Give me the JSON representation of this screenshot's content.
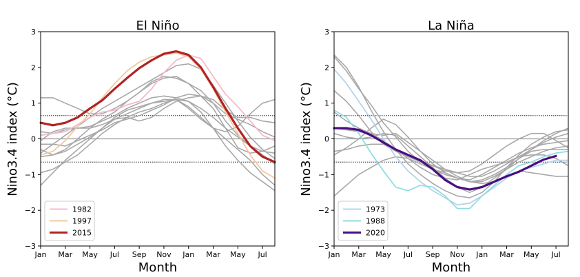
{
  "chart_data": [
    {
      "type": "line",
      "title": "El Niño",
      "xlabel": "Month",
      "ylabel": "Nino3.4 index (°C)",
      "xlim": [
        0,
        19
      ],
      "ylim": [
        -3,
        3
      ],
      "x_tick_labels": [
        "Jan",
        "Mar",
        "May",
        "Jul",
        "Sep",
        "Nov",
        "Jan",
        "Mar",
        "May",
        "Jul"
      ],
      "x_tick_positions": [
        0,
        2,
        4,
        6,
        8,
        10,
        12,
        14,
        16,
        18
      ],
      "y_tick_labels": [
        "−3",
        "−2",
        "−1",
        "0",
        "1",
        "2",
        "3"
      ],
      "y_tick_values": [
        -3,
        -2,
        -1,
        0,
        1,
        2,
        3
      ],
      "thresholds": [
        0.65,
        -0.65
      ],
      "zero_line": 0,
      "legend_position": "lower-left",
      "background_series_color": "#a8a8a8",
      "series": [
        {
          "name": "1982",
          "color": "#f6b9cc",
          "highlight": false,
          "values": [
            0.1,
            0.15,
            0.2,
            0.4,
            0.6,
            0.75,
            0.8,
            0.95,
            1.05,
            1.4,
            1.85,
            2.2,
            2.35,
            2.25,
            1.75,
            1.25,
            0.9,
            0.5,
            0.1,
            -0.05
          ]
        },
        {
          "name": "1997",
          "color": "#f2c9a0",
          "highlight": false,
          "values": [
            -0.45,
            -0.35,
            -0.05,
            0.35,
            0.7,
            1.15,
            1.55,
            1.9,
            2.15,
            2.3,
            2.35,
            2.4,
            2.3,
            1.95,
            1.4,
            0.75,
            0.15,
            -0.45,
            -0.9,
            -1.1
          ]
        },
        {
          "name": "2015",
          "color": "#b22222",
          "highlight": true,
          "values": [
            0.45,
            0.38,
            0.45,
            0.6,
            0.85,
            1.08,
            1.4,
            1.7,
            1.98,
            2.2,
            2.38,
            2.45,
            2.35,
            2.0,
            1.45,
            0.85,
            0.3,
            -0.2,
            -0.5,
            -0.65
          ]
        },
        {
          "values": [
            1.15,
            1.15,
            1.0,
            0.85,
            0.7,
            0.7,
            0.85,
            1.05,
            1.3,
            1.6,
            1.75,
            1.7,
            1.55,
            1.35,
            1.0,
            0.5,
            0.1,
            -0.2,
            -0.35,
            -0.4
          ]
        },
        {
          "values": [
            -0.4,
            -0.15,
            0.1,
            0.35,
            0.6,
            0.85,
            1.05,
            1.25,
            1.45,
            1.65,
            1.85,
            2.05,
            2.1,
            1.95,
            1.5,
            1.0,
            0.5,
            0.05,
            -0.3,
            -0.55
          ]
        },
        {
          "values": [
            -0.3,
            -0.45,
            -0.3,
            0.0,
            0.3,
            0.55,
            0.75,
            1.05,
            1.3,
            1.55,
            1.7,
            1.75,
            1.55,
            1.2,
            0.85,
            0.3,
            -0.25,
            -0.4,
            -0.35,
            -0.2
          ]
        },
        {
          "values": [
            -0.05,
            0.2,
            0.3,
            0.3,
            0.35,
            0.5,
            0.65,
            0.85,
            1.0,
            1.15,
            1.2,
            1.15,
            1.05,
            0.85,
            0.6,
            0.3,
            0.05,
            -0.2,
            -0.45,
            -0.7
          ]
        },
        {
          "values": [
            -1.3,
            -0.95,
            -0.6,
            -0.3,
            0.0,
            0.3,
            0.6,
            0.8,
            0.9,
            1.0,
            1.05,
            1.1,
            0.9,
            0.6,
            0.3,
            0.0,
            -0.3,
            -0.6,
            -1.0,
            -1.3
          ]
        },
        {
          "values": [
            -0.95,
            -0.85,
            -0.65,
            -0.45,
            -0.15,
            0.15,
            0.4,
            0.6,
            0.75,
            0.85,
            1.0,
            1.1,
            1.05,
            0.75,
            0.3,
            -0.2,
            -0.6,
            -0.95,
            -1.2,
            -1.45
          ]
        },
        {
          "values": [
            -0.5,
            -0.45,
            -0.35,
            -0.15,
            0.05,
            0.3,
            0.55,
            0.7,
            0.85,
            1.0,
            1.1,
            1.1,
            0.85,
            0.55,
            0.3,
            0.2,
            0.35,
            0.7,
            1.0,
            1.1
          ]
        },
        {
          "values": [
            -0.15,
            -0.15,
            -0.2,
            -0.05,
            0.1,
            0.25,
            0.45,
            0.55,
            0.65,
            0.8,
            0.95,
            1.15,
            1.25,
            1.2,
            1.0,
            0.7,
            0.55,
            0.4,
            0.2,
            0.05
          ]
        },
        {
          "values": [
            0.2,
            0.15,
            0.25,
            0.3,
            0.3,
            0.4,
            0.55,
            0.6,
            0.5,
            0.6,
            0.85,
            1.05,
            1.15,
            1.2,
            1.1,
            0.8,
            0.6,
            0.6,
            0.5,
            0.45
          ]
        }
      ]
    },
    {
      "type": "line",
      "title": "La Niña",
      "xlabel": "Month",
      "ylabel": "Nino3.4 index (°C)",
      "xlim": [
        0,
        19
      ],
      "ylim": [
        -3,
        3
      ],
      "x_tick_labels": [
        "Jan",
        "Mar",
        "May",
        "Jul",
        "Sep",
        "Nov",
        "Jan",
        "Mar",
        "May",
        "Jul"
      ],
      "x_tick_positions": [
        0,
        2,
        4,
        6,
        8,
        10,
        12,
        14,
        16,
        18
      ],
      "y_tick_labels": [
        "−3",
        "−2",
        "−1",
        "0",
        "1",
        "2",
        "3"
      ],
      "y_tick_values": [
        -3,
        -2,
        -1,
        0,
        1,
        2,
        3
      ],
      "thresholds": [
        0.65,
        -0.65
      ],
      "zero_line": 0,
      "legend_position": "lower-left",
      "background_series_color": "#a8a8a8",
      "series": [
        {
          "name": "1973",
          "color": "#b4d3ec",
          "highlight": false,
          "values": [
            1.95,
            1.55,
            1.05,
            0.55,
            0.0,
            -0.5,
            -0.9,
            -1.2,
            -1.45,
            -1.65,
            -1.85,
            -1.8,
            -1.6,
            -1.35,
            -1.1,
            -0.9,
            -0.8,
            -0.7,
            -0.6,
            -0.6
          ]
        },
        {
          "name": "1988",
          "color": "#8fdde3",
          "highlight": false,
          "values": [
            0.8,
            0.6,
            0.15,
            -0.4,
            -0.9,
            -1.35,
            -1.45,
            -1.3,
            -1.35,
            -1.6,
            -1.95,
            -1.95,
            -1.6,
            -1.3,
            -1.0,
            -0.75,
            -0.65,
            -0.5,
            -0.4,
            -0.35
          ]
        },
        {
          "name": "2020",
          "color": "#4b0d82",
          "highlight": true,
          "values": [
            0.3,
            0.3,
            0.25,
            0.1,
            -0.1,
            -0.3,
            -0.45,
            -0.6,
            -0.85,
            -1.15,
            -1.35,
            -1.42,
            -1.35,
            -1.2,
            -1.05,
            -0.92,
            -0.75,
            -0.58,
            -0.48
          ]
        },
        {
          "values": [
            2.35,
            2.0,
            1.45,
            0.8,
            0.2,
            -0.3,
            -0.7,
            -1.0,
            -1.25,
            -1.45,
            -1.6,
            -1.65,
            -1.5,
            -1.2,
            -0.8,
            -0.45,
            -0.15,
            0.05,
            0.2,
            0.25
          ]
        },
        {
          "values": [
            1.35,
            1.05,
            0.65,
            0.2,
            -0.15,
            -0.35,
            -0.5,
            -0.6,
            -0.75,
            -0.85,
            -0.95,
            -1.05,
            -1.05,
            -0.9,
            -0.7,
            -0.5,
            -0.3,
            -0.1,
            0.05,
            0.15
          ]
        },
        {
          "values": [
            -0.45,
            -0.25,
            0.0,
            0.3,
            0.55,
            0.4,
            0.05,
            -0.35,
            -0.7,
            -0.95,
            -1.1,
            -1.2,
            -1.2,
            -1.05,
            -0.85,
            -0.55,
            -0.3,
            -0.05,
            0.15,
            0.3
          ]
        },
        {
          "values": [
            0.75,
            0.5,
            0.3,
            0.15,
            0.1,
            0.15,
            -0.1,
            -0.35,
            -0.6,
            -0.85,
            -1.05,
            -1.2,
            -1.15,
            -1.0,
            -0.8,
            -0.55,
            -0.35,
            -0.3,
            -0.3,
            -0.3
          ]
        },
        {
          "values": [
            -1.6,
            -1.3,
            -1.0,
            -0.8,
            -0.6,
            -0.5,
            -0.55,
            -0.7,
            -0.85,
            -1.0,
            -1.1,
            -1.15,
            -1.0,
            -0.8,
            -0.6,
            -0.4,
            -0.25,
            -0.15,
            -0.1,
            -0.05
          ]
        },
        {
          "values": [
            0.3,
            0.25,
            0.2,
            0.15,
            -0.05,
            -0.3,
            -0.5,
            -0.65,
            -0.75,
            -0.9,
            -0.95,
            -0.9,
            -0.7,
            -0.45,
            -0.2,
            0.0,
            0.15,
            0.15,
            -0.05,
            -0.25
          ]
        },
        {
          "values": [
            2.3,
            1.9,
            1.4,
            0.95,
            0.45,
            0.05,
            -0.35,
            -0.65,
            -0.85,
            -0.95,
            -1.1,
            -1.2,
            -1.25,
            -1.2,
            -1.05,
            -0.9,
            -0.95,
            -1.0,
            -1.05,
            -1.05
          ]
        },
        {
          "values": [
            0.15,
            0.05,
            0.0,
            0.05,
            0.15,
            0.1,
            -0.2,
            -0.5,
            -0.8,
            -1.1,
            -1.35,
            -1.5,
            -1.35,
            -1.1,
            -0.85,
            -0.65,
            -0.5,
            -0.35,
            -0.25,
            -0.2
          ]
        },
        {
          "values": [
            -0.35,
            -0.3,
            -0.2,
            -0.15,
            -0.15,
            -0.3,
            -0.55,
            -0.8,
            -1.0,
            -1.1,
            -1.15,
            -1.0,
            -0.85,
            -0.75,
            -0.65,
            -0.5,
            -0.45,
            -0.45,
            -0.55,
            -0.75
          ]
        }
      ]
    }
  ]
}
